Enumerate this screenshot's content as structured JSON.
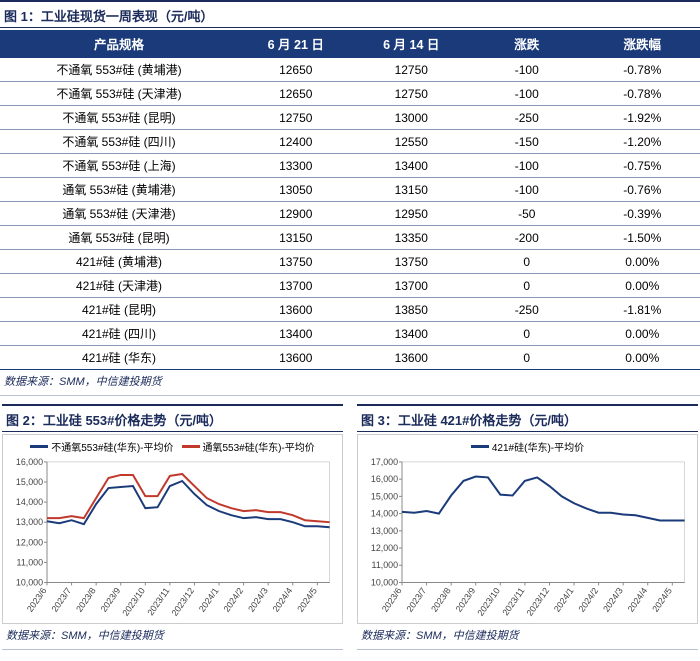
{
  "table": {
    "title": "图 1：工业硅现货一周表现（元/吨）",
    "columns": [
      "产品规格",
      "6 月 21 日",
      "6 月 14 日",
      "涨跌",
      "涨跌幅"
    ],
    "rows": [
      [
        "不通氧 553#硅 (黄埔港)",
        "12650",
        "12750",
        "-100",
        "-0.78%"
      ],
      [
        "不通氧 553#硅 (天津港)",
        "12650",
        "12750",
        "-100",
        "-0.78%"
      ],
      [
        "不通氧 553#硅 (昆明)",
        "12750",
        "13000",
        "-250",
        "-1.92%"
      ],
      [
        "不通氧 553#硅 (四川)",
        "12400",
        "12550",
        "-150",
        "-1.20%"
      ],
      [
        "不通氧 553#硅 (上海)",
        "13300",
        "13400",
        "-100",
        "-0.75%"
      ],
      [
        "通氧 553#硅 (黄埔港)",
        "13050",
        "13150",
        "-100",
        "-0.76%"
      ],
      [
        "通氧 553#硅 (天津港)",
        "12900",
        "12950",
        "-50",
        "-0.39%"
      ],
      [
        "通氧 553#硅 (昆明)",
        "13150",
        "13350",
        "-200",
        "-1.50%"
      ],
      [
        "421#硅 (黄埔港)",
        "13750",
        "13750",
        "0",
        "0.00%"
      ],
      [
        "421#硅 (天津港)",
        "13700",
        "13700",
        "0",
        "0.00%"
      ],
      [
        "421#硅 (昆明)",
        "13600",
        "13850",
        "-250",
        "-1.81%"
      ],
      [
        "421#硅 (四川)",
        "13400",
        "13400",
        "0",
        "0.00%"
      ],
      [
        "421#硅 (华东)",
        "13600",
        "13600",
        "0",
        "0.00%"
      ]
    ],
    "source": "数据来源：SMM，中信建投期货"
  },
  "chart_left": {
    "title": "图 2：工业硅 553#价格走势（元/吨）",
    "type": "line",
    "background_color": "#ffffff",
    "border_color": "#cccccc",
    "grid_color": "#bbbbbb",
    "axis_color": "#888888",
    "ylim": [
      10000,
      16000
    ],
    "ytick_step": 1000,
    "x_labels": [
      "2023/6",
      "2023/7",
      "2023/8",
      "2023/9",
      "2023/10",
      "2023/11",
      "2023/12",
      "2024/1",
      "2024/2",
      "2024/3",
      "2024/4",
      "2024/5"
    ],
    "series": [
      {
        "name": "不通氧553#硅(华东)-平均价",
        "color": "#1a3a7a",
        "line_width": 2,
        "values": [
          13050,
          12950,
          13100,
          12900,
          13900,
          14700,
          14750,
          14800,
          13700,
          13750,
          14800,
          15050,
          14400,
          13850,
          13550,
          13350,
          13200,
          13250,
          13150,
          13150,
          13000,
          12800,
          12800,
          12750
        ]
      },
      {
        "name": "通氧553#硅(华东)-平均价",
        "color": "#c0392b",
        "line_width": 2,
        "values": [
          13200,
          13200,
          13300,
          13200,
          14200,
          15200,
          15350,
          15350,
          14300,
          14300,
          15300,
          15400,
          14800,
          14200,
          13900,
          13700,
          13550,
          13600,
          13500,
          13500,
          13350,
          13100,
          13050,
          13000
        ]
      }
    ],
    "source": "数据来源：SMM，中信建投期货"
  },
  "chart_right": {
    "title": "图 3：工业硅 421#价格走势（元/吨）",
    "type": "line",
    "background_color": "#ffffff",
    "border_color": "#cccccc",
    "grid_color": "#bbbbbb",
    "axis_color": "#888888",
    "ylim": [
      10000,
      17000
    ],
    "ytick_step": 1000,
    "x_labels": [
      "2023/6",
      "2023/7",
      "2023/8",
      "2023/9",
      "2023/10",
      "2023/11",
      "2023/12",
      "2024/1",
      "2024/2",
      "2024/3",
      "2024/4",
      "2024/5"
    ],
    "series": [
      {
        "name": "421#硅(华东)-平均价",
        "color": "#1a3a7a",
        "line_width": 2,
        "values": [
          14100,
          14050,
          14150,
          14000,
          15050,
          15900,
          16150,
          16100,
          15100,
          15050,
          15900,
          16100,
          15600,
          15000,
          14600,
          14300,
          14050,
          14050,
          13950,
          13900,
          13750,
          13600,
          13600,
          13600
        ]
      }
    ],
    "source": "数据来源：SMM，中信建投期货"
  }
}
